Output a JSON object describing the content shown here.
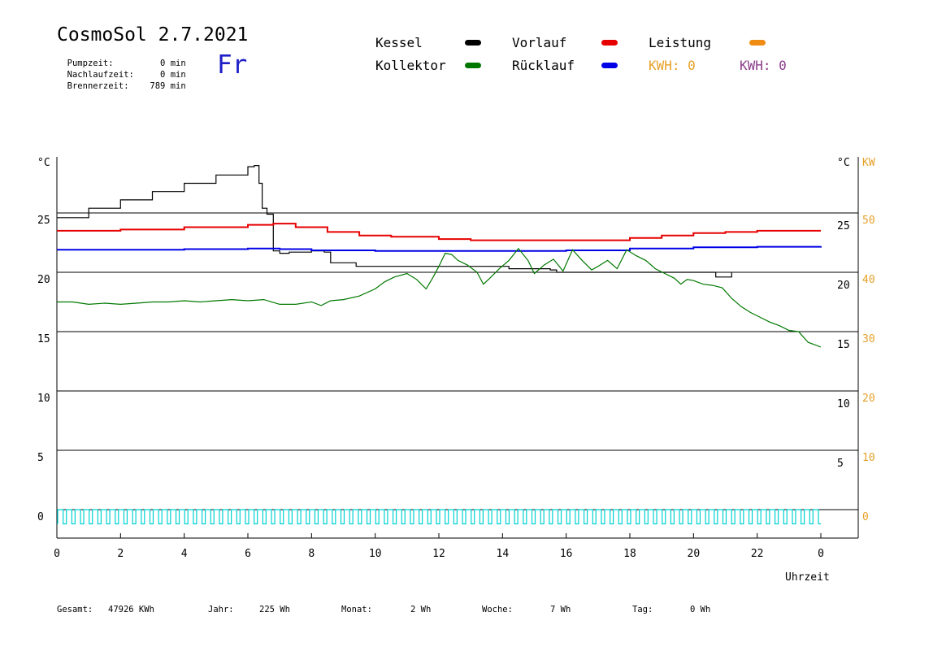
{
  "header": {
    "title": "CosmoSol 2.7.2021",
    "day": "Fr",
    "info": [
      {
        "label": "Pumpzeit:",
        "value": "0 min"
      },
      {
        "label": "Nachlaufzeit:",
        "value": "0 min"
      },
      {
        "label": "Brennerzeit:",
        "value": "789 min"
      }
    ]
  },
  "legend": {
    "kessel": {
      "label": "Kessel",
      "color": "#000000"
    },
    "kollektor": {
      "label": "Kollektor",
      "color": "#007800"
    },
    "vorlauf": {
      "label": "Vorlauf",
      "color": "#e60000"
    },
    "ruecklauf": {
      "label": "Rücklauf",
      "color": "#0000e6"
    },
    "leistung": {
      "label": "Leistung",
      "color": "#f08c14"
    },
    "kwh1": "KWH: 0",
    "kwh2": "KWH: 0",
    "kwh1_color": "#e6a028",
    "kwh2_color": "#8c3c8c"
  },
  "footer": {
    "gesamt_label": "Gesamt:",
    "gesamt_value": "47926 KWh",
    "jahr_label": "Jahr:",
    "jahr_value": "225 Wh",
    "monat_label": "Monat:",
    "monat_value": "2 Wh",
    "woche_label": "Woche:",
    "woche_value": "7 Wh",
    "tag_label": "Tag:",
    "tag_value": "0 Wh"
  },
  "chart_data": {
    "type": "line",
    "xlabel": "Uhrzeit",
    "left_unit": "°C",
    "right_unit_temp": "°C",
    "right_unit_power": "KW",
    "x_ticks": [
      "0",
      "2",
      "4",
      "6",
      "8",
      "10",
      "12",
      "14",
      "16",
      "18",
      "20",
      "22",
      "0"
    ],
    "xlim": [
      0,
      24
    ],
    "ylim": [
      -1.5,
      30
    ],
    "y_ticks_left": [
      0,
      5,
      10,
      15,
      20,
      25
    ],
    "y_ticks_right": [
      5,
      10,
      15,
      20,
      25
    ],
    "kw_ticks": [
      0,
      10,
      20,
      30,
      40,
      50
    ],
    "grid_lines": [
      0,
      5,
      10,
      15,
      20,
      25
    ],
    "series": [
      {
        "name": "Kessel",
        "key": "kessel",
        "color": "#000000",
        "x": [
          0,
          1,
          2,
          3,
          4,
          5,
          6,
          6.2,
          6.35,
          6.45,
          6.6,
          6.8,
          7.0,
          7.3,
          8.0,
          8.4,
          8.6,
          9.2,
          9.4,
          10,
          12,
          14,
          14.2,
          15.5,
          15.7,
          17,
          18,
          19,
          20,
          20.6,
          20.7,
          21.2
        ],
        "y": [
          24.6,
          25.4,
          26.1,
          26.8,
          27.5,
          28.2,
          28.9,
          29.0,
          27.5,
          25.4,
          24.9,
          21.8,
          21.6,
          21.7,
          21.8,
          21.7,
          20.8,
          20.8,
          20.5,
          20.5,
          20.5,
          20.5,
          20.3,
          20.2,
          20.0,
          20.0,
          20.0,
          20.0,
          20.0,
          20.0,
          19.6,
          20.0
        ]
      },
      {
        "name": "Vorlauf",
        "key": "vorlauf",
        "color": "#e60000",
        "x": [
          0,
          2,
          4,
          6,
          6.8,
          7.5,
          8.5,
          9.5,
          10.5,
          12,
          13,
          14,
          16,
          17,
          18,
          19,
          20,
          21,
          22,
          24
        ],
        "y": [
          23.5,
          23.6,
          23.8,
          24.0,
          24.1,
          23.8,
          23.4,
          23.1,
          23.0,
          22.8,
          22.7,
          22.7,
          22.7,
          22.7,
          22.9,
          23.1,
          23.3,
          23.4,
          23.5,
          23.5
        ]
      },
      {
        "name": "Rücklauf",
        "key": "ruecklauf",
        "color": "#0000e6",
        "x": [
          0,
          2,
          4,
          6,
          7,
          8,
          10,
          12,
          14,
          16,
          18,
          20,
          22,
          24
        ],
        "y": [
          21.9,
          21.9,
          21.95,
          22.0,
          21.95,
          21.85,
          21.8,
          21.8,
          21.8,
          21.85,
          22.0,
          22.1,
          22.15,
          22.2
        ]
      },
      {
        "name": "Kollektor",
        "key": "kollektor",
        "color": "#007800",
        "x": [
          0,
          0.5,
          1,
          1.5,
          2,
          2.5,
          3,
          3.5,
          4,
          4.5,
          5,
          5.5,
          6,
          6.5,
          7,
          7.5,
          8,
          8.3,
          8.6,
          9,
          9.5,
          10,
          10.3,
          10.6,
          11,
          11.3,
          11.6,
          11.8,
          12,
          12.2,
          12.4,
          12.6,
          12.9,
          13.2,
          13.4,
          13.6,
          13.9,
          14.2,
          14.5,
          14.8,
          15.0,
          15.3,
          15.6,
          15.9,
          16.2,
          16.5,
          16.8,
          17.0,
          17.3,
          17.6,
          17.9,
          18.2,
          18.5,
          18.8,
          19.1,
          19.4,
          19.6,
          19.8,
          20.0,
          20.3,
          20.6,
          20.9,
          21.2,
          21.5,
          21.8,
          22.1,
          22.4,
          22.7,
          23.0,
          23.3,
          23.6,
          24.0
        ],
        "y": [
          17.5,
          17.5,
          17.3,
          17.4,
          17.3,
          17.4,
          17.5,
          17.5,
          17.6,
          17.5,
          17.6,
          17.7,
          17.6,
          17.7,
          17.3,
          17.3,
          17.5,
          17.2,
          17.6,
          17.7,
          18.0,
          18.6,
          19.2,
          19.6,
          19.9,
          19.4,
          18.6,
          19.5,
          20.5,
          21.6,
          21.5,
          21.0,
          20.6,
          20.0,
          19.0,
          19.5,
          20.3,
          21.0,
          22.0,
          21.0,
          19.9,
          20.6,
          21.1,
          20.1,
          21.9,
          21.0,
          20.2,
          20.5,
          21.0,
          20.3,
          21.9,
          21.4,
          21.0,
          20.3,
          19.9,
          19.5,
          19.0,
          19.4,
          19.3,
          19.0,
          18.9,
          18.7,
          17.8,
          17.1,
          16.6,
          16.2,
          15.8,
          15.5,
          15.1,
          15.0,
          14.1,
          13.7
        ]
      }
    ],
    "pump_indicator": {
      "color": "#00d2d2",
      "cycles": 88,
      "low": -1.2,
      "high": 0.0
    }
  }
}
